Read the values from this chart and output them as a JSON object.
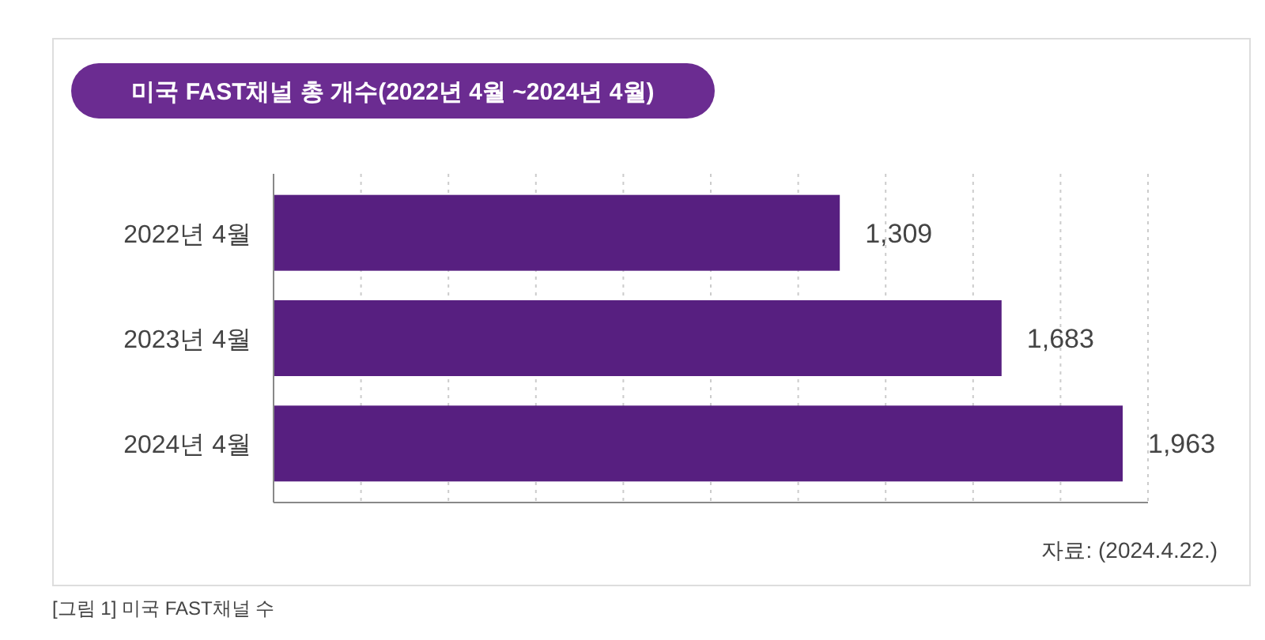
{
  "chart_data": {
    "type": "bar",
    "orientation": "horizontal",
    "title": "미국 FAST채널 총 개수(2022년 4월 ~2024년 4월)",
    "categories": [
      "2022년 4월",
      "2023년 4월",
      "2024년 4월"
    ],
    "values": [
      1309,
      1683,
      1963
    ],
    "color": "#571f80",
    "value_labels": [
      "1,309",
      "1,683",
      "1,963"
    ],
    "grid": "x",
    "annotations": [
      "자료: (2024.4.22.)",
      "[그림 1] 미국 FAST채널 수"
    ]
  }
}
